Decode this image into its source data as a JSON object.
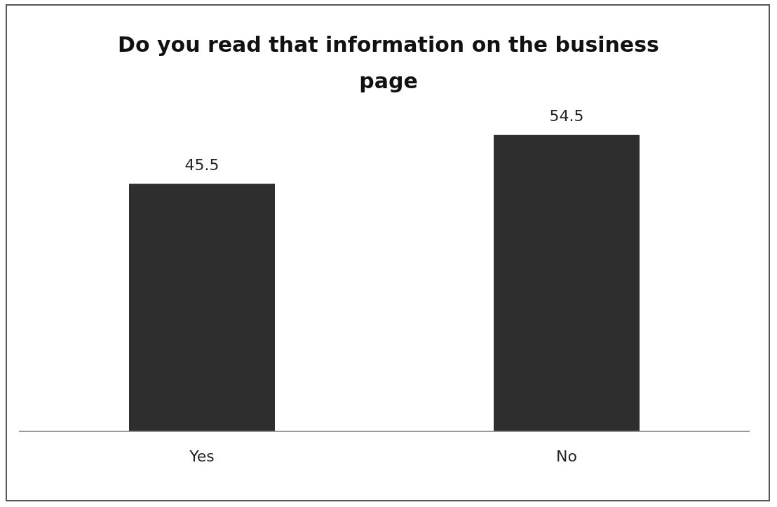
{
  "chart_data": {
    "type": "bar",
    "title": "Do you read that information on the business page",
    "categories": [
      "Yes",
      "No"
    ],
    "values": [
      45.5,
      54.5
    ],
    "color": "#2e2e2e",
    "data_labels": true,
    "grid": false,
    "legend": false
  }
}
